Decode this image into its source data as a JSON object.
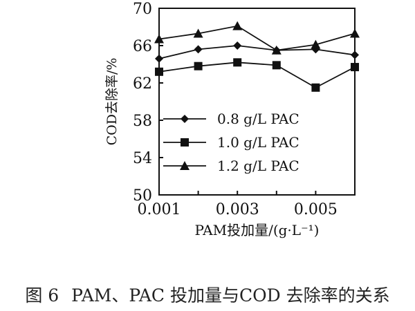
{
  "chart_data": {
    "type": "line",
    "title": "",
    "xlabel": "PAM投加量/(g·L⁻¹)",
    "ylabel": "COD去除率/%",
    "xlim": [
      0.001,
      0.006
    ],
    "ylim": [
      50,
      70
    ],
    "x": [
      0.001,
      0.002,
      0.003,
      0.004,
      0.005,
      0.006
    ],
    "xticks": [
      "0.001",
      "0.003",
      "0.005"
    ],
    "yticks": [
      "50",
      "54",
      "58",
      "62",
      "66",
      "70"
    ],
    "grid": false,
    "legend_position": "center-left inside plot",
    "series": [
      {
        "name": "0.8  g/L  PAC",
        "marker": "diamond",
        "values": [
          64.6,
          65.6,
          66.0,
          65.5,
          65.6,
          65.0
        ]
      },
      {
        "name": "1.0  g/L  PAC",
        "marker": "square",
        "values": [
          63.2,
          63.8,
          64.2,
          63.9,
          61.5,
          63.7
        ]
      },
      {
        "name": "1.2  g/L  PAC",
        "marker": "triangle",
        "values": [
          66.7,
          67.3,
          68.1,
          65.5,
          66.1,
          67.3
        ]
      }
    ]
  },
  "caption": {
    "number": "图 6",
    "text": "PAM、PAC 投加量与COD 去除率的关系"
  }
}
